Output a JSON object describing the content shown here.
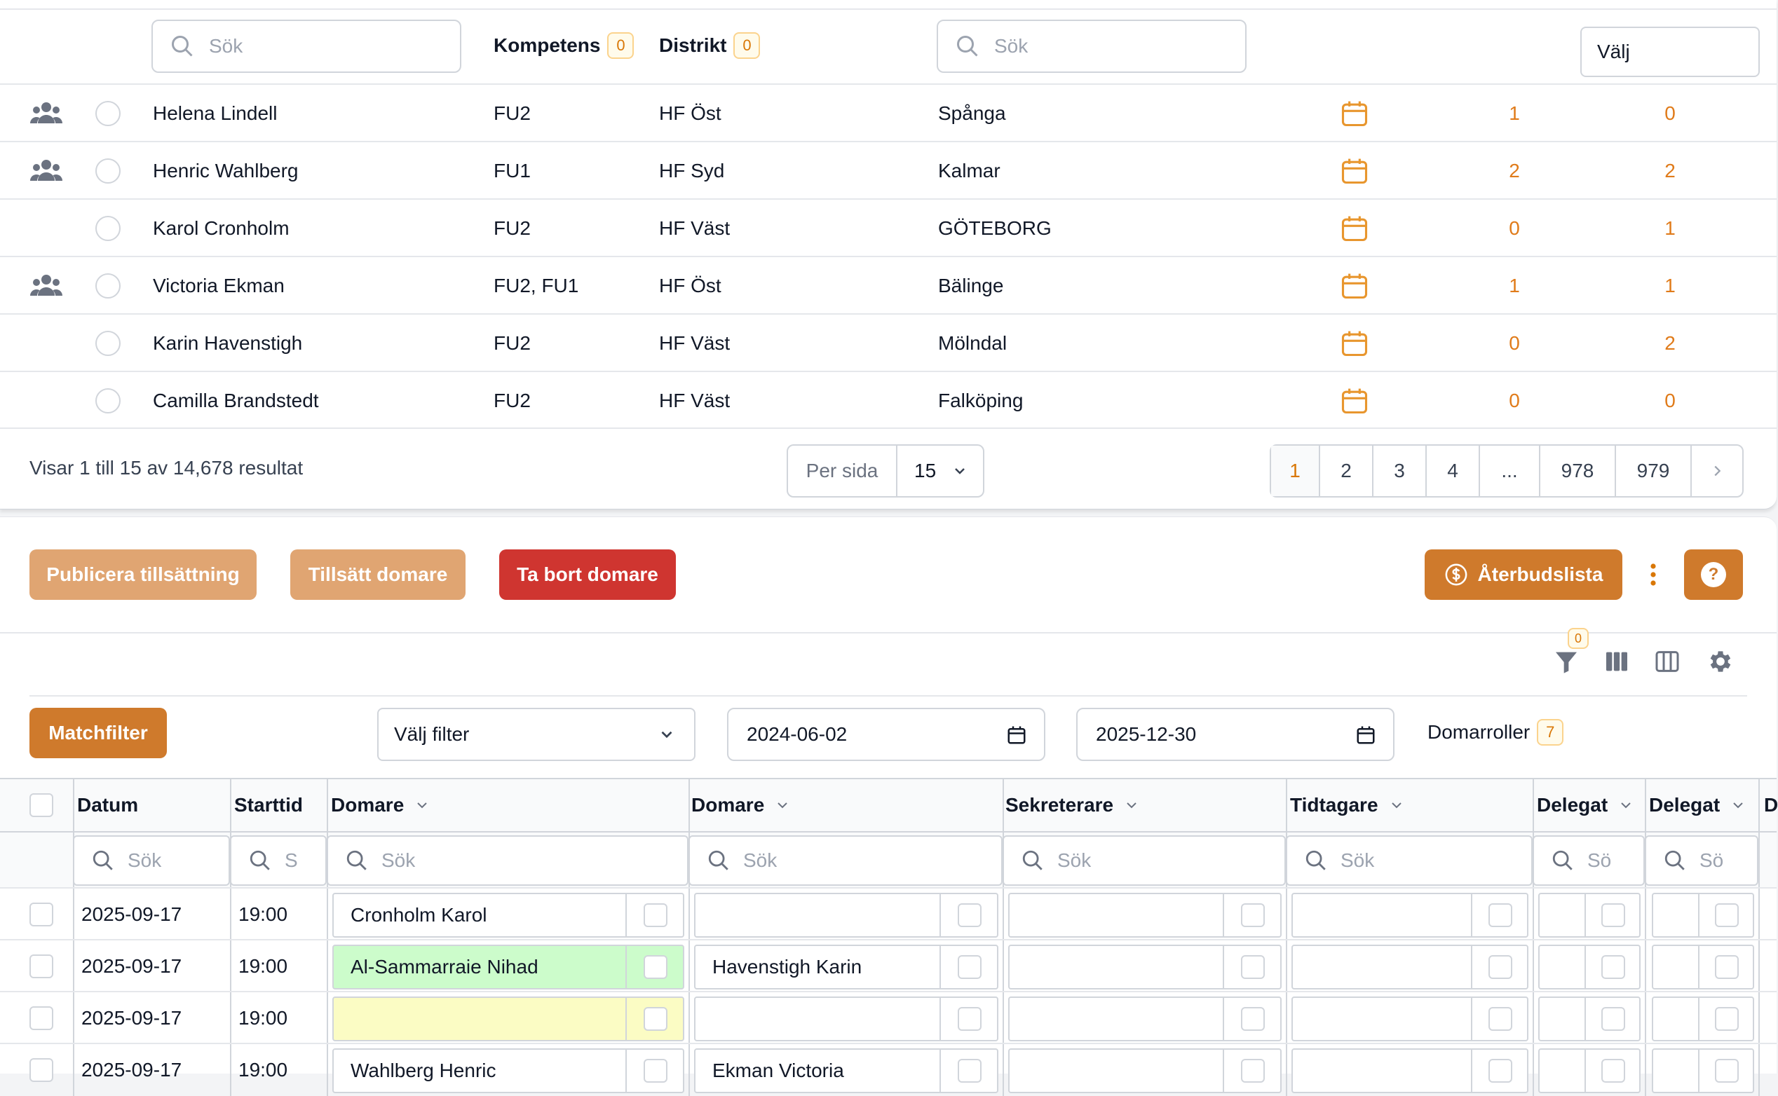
{
  "referee_list": {
    "name_search_placeholder": "Sök",
    "location_search_placeholder": "Sök",
    "competence_label": "Kompetens",
    "competence_count": "0",
    "district_label": "Distrikt",
    "district_count": "0",
    "select_label": "Välj",
    "rows": [
      {
        "name": "Helena Lindell",
        "competence": "FU2",
        "district": "HF Öst",
        "location": "Spånga",
        "count1": "1",
        "count2": "0",
        "group_icon": true
      },
      {
        "name": "Henric Wahlberg",
        "competence": "FU1",
        "district": "HF Syd",
        "location": "Kalmar",
        "count1": "2",
        "count2": "2",
        "group_icon": true
      },
      {
        "name": "Karol Cronholm",
        "competence": "FU2",
        "district": "HF Väst",
        "location": "GÖTEBORG",
        "count1": "0",
        "count2": "1",
        "group_icon": false
      },
      {
        "name": "Victoria Ekman",
        "competence": "FU2, FU1",
        "district": "HF Öst",
        "location": "Bälinge",
        "count1": "1",
        "count2": "1",
        "group_icon": true
      },
      {
        "name": "Karin Havenstigh",
        "competence": "FU2",
        "district": "HF Väst",
        "location": "Mölndal",
        "count1": "0",
        "count2": "2",
        "group_icon": false
      },
      {
        "name": "Camilla Brandstedt",
        "competence": "FU2",
        "district": "HF Väst",
        "location": "Falköping",
        "count1": "0",
        "count2": "0",
        "group_icon": false
      }
    ],
    "results_text": "Visar 1 till 15 av 14,678 resultat",
    "per_page_label": "Per sida",
    "per_page_value": "15",
    "pages": [
      "1",
      "2",
      "3",
      "4",
      "...",
      "978",
      "979"
    ],
    "current_page": "1"
  },
  "actions": {
    "publish": "Publicera tillsättning",
    "assign": "Tillsätt domare",
    "remove": "Ta bort domare",
    "refund_list": "Återbudslista",
    "help": "?"
  },
  "toolbar": {
    "filter_count": "0"
  },
  "filters": {
    "match_filter": "Matchfilter",
    "select_filter": "Välj filter",
    "date_from": "2024-06-02",
    "date_to": "2025-12-30",
    "roles_label": "Domarroller",
    "roles_count": "7"
  },
  "grid": {
    "columns": [
      "Datum",
      "Starttid",
      "Domare",
      "Domare",
      "Sekreterare",
      "Tidtagare",
      "Delegat",
      "Delegat",
      "D"
    ],
    "search_placeholders": [
      "Sök",
      "S",
      "Sök",
      "Sök",
      "Sök",
      "Sök",
      "Sö",
      "Sö"
    ],
    "rows": [
      {
        "date": "2025-09-17",
        "time": "19:00",
        "ref1": "Cronholm Karol",
        "ref2": "",
        "ref1_bg": "#ffffff"
      },
      {
        "date": "2025-09-17",
        "time": "19:00",
        "ref1": "Al-Sammarraie Nihad",
        "ref2": "Havenstigh Karin",
        "ref1_bg": "#ccfccb"
      },
      {
        "date": "2025-09-17",
        "time": "19:00",
        "ref1": "",
        "ref2": "",
        "ref1_bg": "#fbfcc4"
      },
      {
        "date": "2025-09-17",
        "time": "19:00",
        "ref1": "Wahlberg Henric",
        "ref2": "Ekman Victoria",
        "ref1_bg": "#ffffff"
      }
    ]
  },
  "colors": {
    "accent": "#d97706",
    "orange_light": "#e0a572",
    "red": "#cf3530",
    "orange_btn": "#cf7a2c"
  }
}
